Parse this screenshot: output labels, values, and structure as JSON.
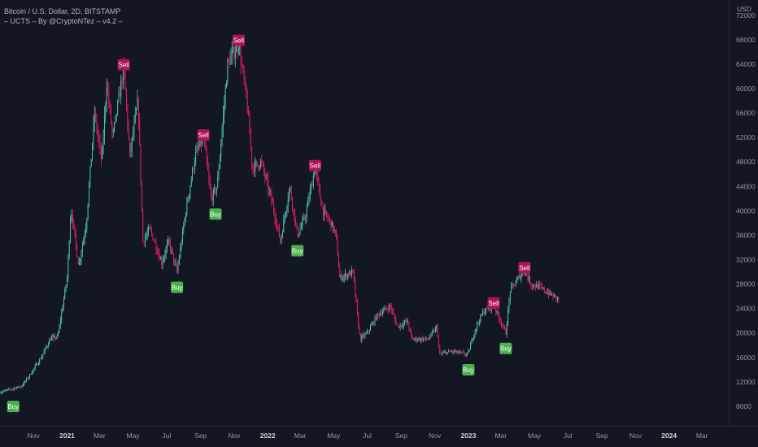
{
  "header": {
    "title": "Bitcoin / U.S. Dollar, 2D, BITSTAMP",
    "indicator": "– UCTS – By @CryptoNTez – v4.2 –"
  },
  "colors": {
    "background": "#131722",
    "up": "#4fc3b4",
    "down": "#e91e63",
    "buy": "#4caf50",
    "sell": "#ad1457",
    "text": "#9598a1",
    "axis_line": "#2a2e39"
  },
  "chart_data": {
    "type": "candlestick",
    "symbol": "Bitcoin / U.S. Dollar",
    "interval": "2D",
    "exchange": "BITSTAMP",
    "y_axis": {
      "label": "USD",
      "position": "right",
      "ticks": [
        8000,
        12000,
        16000,
        20000,
        24000,
        28000,
        32000,
        36000,
        40000,
        44000,
        48000,
        52000,
        56000,
        60000,
        64000,
        68000,
        72000
      ],
      "range": [
        4800,
        74500
      ]
    },
    "x_axis": {
      "range": [
        "2020-09-01",
        "2024-04-20"
      ],
      "ticks": [
        {
          "date": "2020-11-01",
          "label": "Nov",
          "year": false
        },
        {
          "date": "2021-01-01",
          "label": "2021",
          "year": true
        },
        {
          "date": "2021-03-01",
          "label": "Mar",
          "year": false
        },
        {
          "date": "2021-05-01",
          "label": "May",
          "year": false
        },
        {
          "date": "2021-07-01",
          "label": "Jul",
          "year": false
        },
        {
          "date": "2021-09-01",
          "label": "Sep",
          "year": false
        },
        {
          "date": "2021-11-01",
          "label": "Nov",
          "year": false
        },
        {
          "date": "2022-01-01",
          "label": "2022",
          "year": true
        },
        {
          "date": "2022-03-01",
          "label": "Mar",
          "year": false
        },
        {
          "date": "2022-05-01",
          "label": "May",
          "year": false
        },
        {
          "date": "2022-07-01",
          "label": "Jul",
          "year": false
        },
        {
          "date": "2022-09-01",
          "label": "Sep",
          "year": false
        },
        {
          "date": "2022-11-01",
          "label": "Nov",
          "year": false
        },
        {
          "date": "2023-01-01",
          "label": "2023",
          "year": true
        },
        {
          "date": "2023-03-01",
          "label": "Mar",
          "year": false
        },
        {
          "date": "2023-05-01",
          "label": "May",
          "year": false
        },
        {
          "date": "2023-07-01",
          "label": "Jul",
          "year": false
        },
        {
          "date": "2023-09-01",
          "label": "Sep",
          "year": false
        },
        {
          "date": "2023-11-01",
          "label": "Nov",
          "year": false
        },
        {
          "date": "2024-01-01",
          "label": "2024",
          "year": true
        },
        {
          "date": "2024-03-01",
          "label": "Mar",
          "year": false
        }
      ]
    },
    "price_path": [
      [
        "2020-09-01",
        10300
      ],
      [
        "2020-10-10",
        11300
      ],
      [
        "2020-10-25",
        13100
      ],
      [
        "2020-11-15",
        16000
      ],
      [
        "2020-12-01",
        19000
      ],
      [
        "2020-12-15",
        19400
      ],
      [
        "2021-01-01",
        29000
      ],
      [
        "2021-01-08",
        40500
      ],
      [
        "2021-01-22",
        31000
      ],
      [
        "2021-02-05",
        38000
      ],
      [
        "2021-02-20",
        56000
      ],
      [
        "2021-03-05",
        48000
      ],
      [
        "2021-03-14",
        61000
      ],
      [
        "2021-03-25",
        52000
      ],
      [
        "2021-04-14",
        63500
      ],
      [
        "2021-04-25",
        49000
      ],
      [
        "2021-05-10",
        58000
      ],
      [
        "2021-05-19",
        35000
      ],
      [
        "2021-06-01",
        37000
      ],
      [
        "2021-06-22",
        31500
      ],
      [
        "2021-07-05",
        35000
      ],
      [
        "2021-07-20",
        30000
      ],
      [
        "2021-08-05",
        40000
      ],
      [
        "2021-08-22",
        49000
      ],
      [
        "2021-09-06",
        52000
      ],
      [
        "2021-09-20",
        42000
      ],
      [
        "2021-10-01",
        44000
      ],
      [
        "2021-10-20",
        64000
      ],
      [
        "2021-11-09",
        67500
      ],
      [
        "2021-11-25",
        57000
      ],
      [
        "2021-12-04",
        47000
      ],
      [
        "2021-12-20",
        48000
      ],
      [
        "2022-01-10",
        41000
      ],
      [
        "2022-01-24",
        35000
      ],
      [
        "2022-02-10",
        44000
      ],
      [
        "2022-02-24",
        36000
      ],
      [
        "2022-03-10",
        39000
      ],
      [
        "2022-03-28",
        47000
      ],
      [
        "2022-04-11",
        40000
      ],
      [
        "2022-04-26",
        38000
      ],
      [
        "2022-05-05",
        36000
      ],
      [
        "2022-05-12",
        29000
      ],
      [
        "2022-06-05",
        30000
      ],
      [
        "2022-06-14",
        22000
      ],
      [
        "2022-06-18",
        19000
      ],
      [
        "2022-07-01",
        20000
      ],
      [
        "2022-07-20",
        23000
      ],
      [
        "2022-08-12",
        24400
      ],
      [
        "2022-08-25",
        21000
      ],
      [
        "2022-09-12",
        22000
      ],
      [
        "2022-09-20",
        19000
      ],
      [
        "2022-10-20",
        19000
      ],
      [
        "2022-11-05",
        21000
      ],
      [
        "2022-11-09",
        16500
      ],
      [
        "2022-12-01",
        17000
      ],
      [
        "2022-12-31",
        16500
      ],
      [
        "2023-01-14",
        20800
      ],
      [
        "2023-01-28",
        23500
      ],
      [
        "2023-02-16",
        24500
      ],
      [
        "2023-03-10",
        20000
      ],
      [
        "2023-03-18",
        27000
      ],
      [
        "2023-04-13",
        30300
      ],
      [
        "2023-04-25",
        28000
      ],
      [
        "2023-05-10",
        27500
      ],
      [
        "2023-06-05",
        26000
      ],
      [
        "2023-06-15",
        25500
      ]
    ],
    "signals": [
      {
        "type": "buy",
        "label": "Buy",
        "date": "2020-09-25",
        "price": 10500
      },
      {
        "type": "sell",
        "label": "Sell",
        "date": "2021-04-14",
        "price": 63500
      },
      {
        "type": "buy",
        "label": "Buy",
        "date": "2021-07-20",
        "price": 30000
      },
      {
        "type": "sell",
        "label": "Sell",
        "date": "2021-09-06",
        "price": 52000
      },
      {
        "type": "buy",
        "label": "Buy",
        "date": "2021-09-28",
        "price": 42000
      },
      {
        "type": "sell",
        "label": "Sell",
        "date": "2021-11-09",
        "price": 67500
      },
      {
        "type": "sell",
        "label": "Sell",
        "date": "2022-03-28",
        "price": 47000
      },
      {
        "type": "buy",
        "label": "Buy",
        "date": "2022-02-24",
        "price": 36000
      },
      {
        "type": "buy",
        "label": "Buy",
        "date": "2023-01-01",
        "price": 16500
      },
      {
        "type": "sell",
        "label": "Sell",
        "date": "2023-02-16",
        "price": 24500
      },
      {
        "type": "buy",
        "label": "Buy",
        "date": "2023-03-10",
        "price": 20000
      },
      {
        "type": "sell",
        "label": "Sell",
        "date": "2023-04-13",
        "price": 30300
      }
    ]
  }
}
